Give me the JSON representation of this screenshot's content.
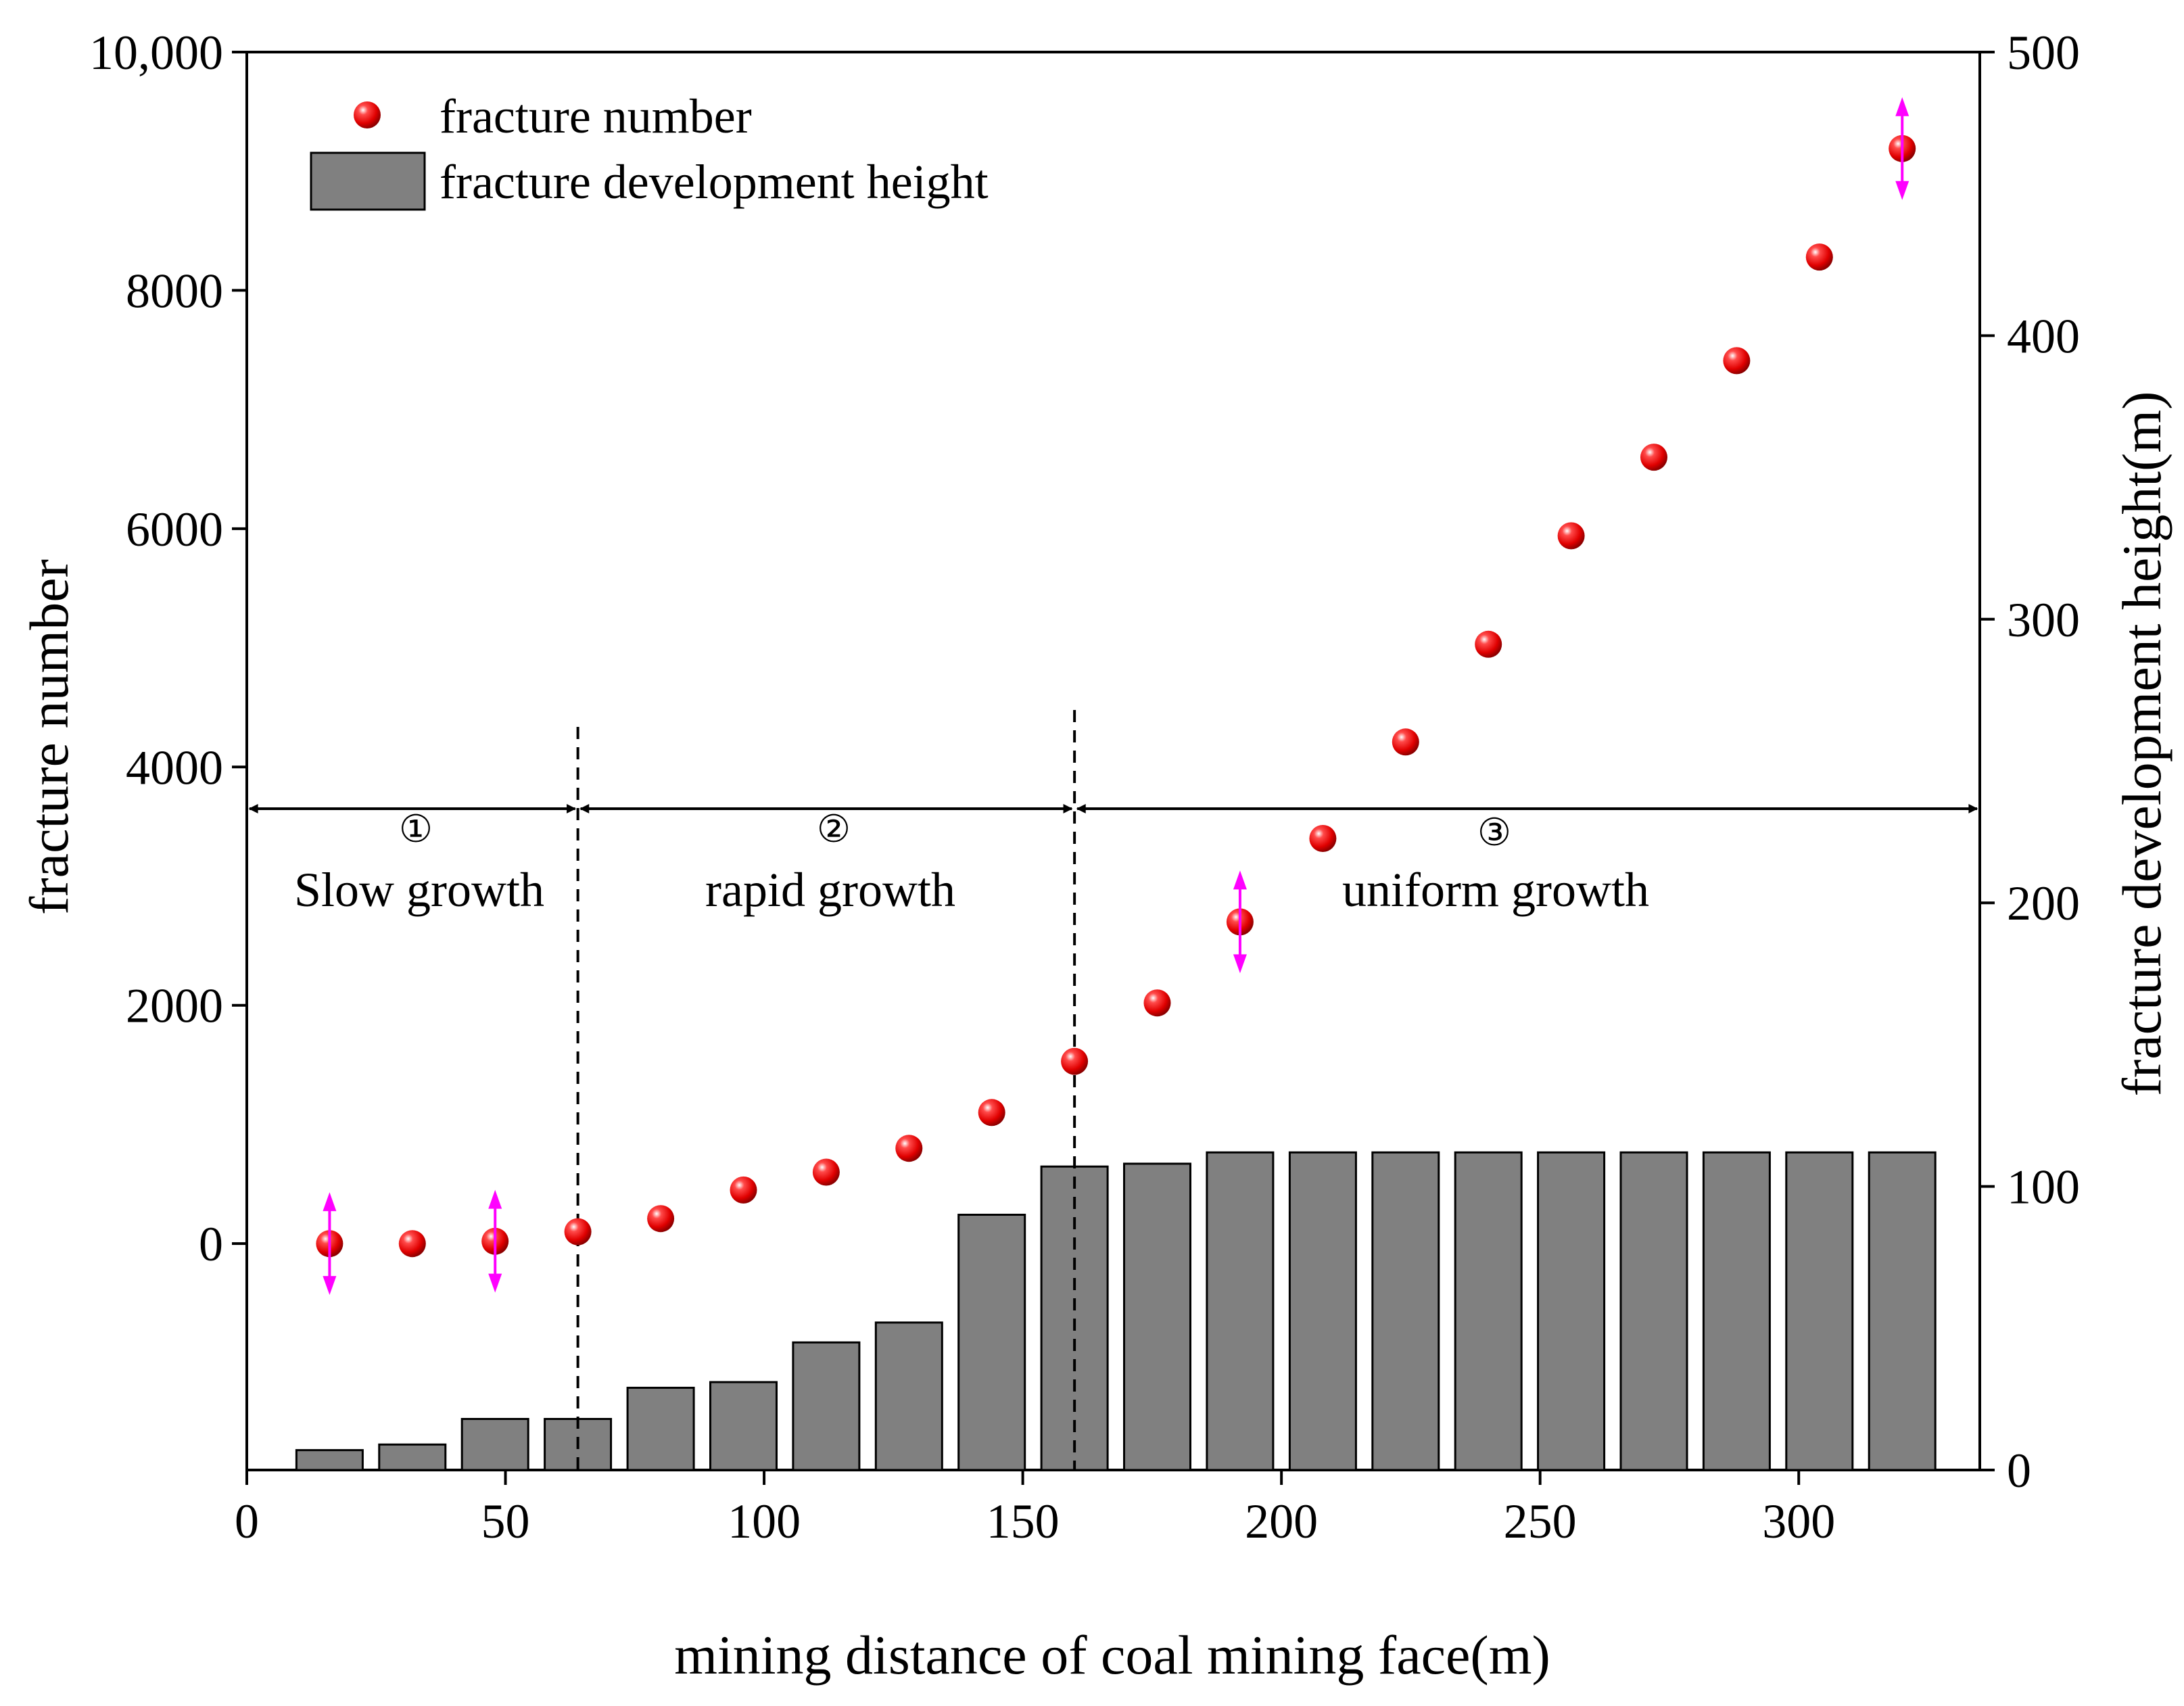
{
  "chart_data": {
    "type": "bar+scatter",
    "xlabel": "mining distance of coal mining face(m)",
    "ylabel_left": "fracture number",
    "ylabel_right": "fracture development height(m)",
    "x_range": [
      0,
      335
    ],
    "y_left_range": [
      -1900,
      10000
    ],
    "y_right_range": [
      0,
      500
    ],
    "x_ticks": [
      "0",
      "50",
      "100",
      "150",
      "200",
      "250",
      "300"
    ],
    "x_tick_values": [
      0,
      50,
      100,
      150,
      200,
      250,
      300
    ],
    "y_left_ticks": [
      "10,000",
      "8000",
      "6000",
      "4000",
      "2000",
      "0"
    ],
    "y_left_tick_values": [
      10000,
      8000,
      6000,
      4000,
      2000,
      0
    ],
    "y_right_ticks": [
      "500",
      "400",
      "300",
      "200",
      "100",
      "0"
    ],
    "y_right_tick_values": [
      500,
      400,
      300,
      200,
      100,
      0
    ],
    "legend": {
      "position": "top-left",
      "items": [
        {
          "label": "fracture number",
          "marker": "red-sphere"
        },
        {
          "label": "fracture development height",
          "marker": "gray-bar"
        }
      ]
    },
    "series": [
      {
        "name": "fracture development height",
        "kind": "bar",
        "axis": "right",
        "color": "#808080",
        "x": [
          16,
          32,
          48,
          64,
          80,
          96,
          112,
          128,
          144,
          160,
          176,
          192,
          208,
          224,
          240,
          256,
          272,
          288,
          304,
          320
        ],
        "values": [
          7,
          9,
          18,
          18,
          29,
          31,
          45,
          52,
          90,
          107,
          108,
          112,
          112,
          112,
          112,
          112,
          112,
          112,
          112,
          112
        ]
      },
      {
        "name": "fracture number",
        "kind": "scatter",
        "axis": "left",
        "color": "#ff0000",
        "x": [
          16,
          32,
          48,
          64,
          80,
          96,
          112,
          128,
          144,
          160,
          176,
          192,
          208,
          224,
          240,
          256,
          272,
          288,
          304,
          320
        ],
        "values": [
          0,
          0,
          20,
          100,
          210,
          450,
          600,
          800,
          1100,
          1530,
          2020,
          2700,
          3400,
          4210,
          5030,
          5940,
          6600,
          7410,
          8280,
          9190
        ]
      }
    ],
    "arrow_markers_x": [
      16,
      48,
      192,
      320
    ],
    "phase_dividers_x": [
      64,
      160
    ],
    "phase_arrow_level": 3650,
    "phases": [
      {
        "num": "①",
        "label": "Slow growth",
        "x_from": 0,
        "x_to": 64
      },
      {
        "num": "②",
        "label": "rapid growth",
        "x_from": 64,
        "x_to": 160
      },
      {
        "num": "③",
        "label": "uniform growth",
        "x_from": 160,
        "x_to": 335
      }
    ],
    "colors": {
      "bar": "#808080",
      "point": "#ff0000",
      "double_arrow": "#ff00ff"
    }
  }
}
